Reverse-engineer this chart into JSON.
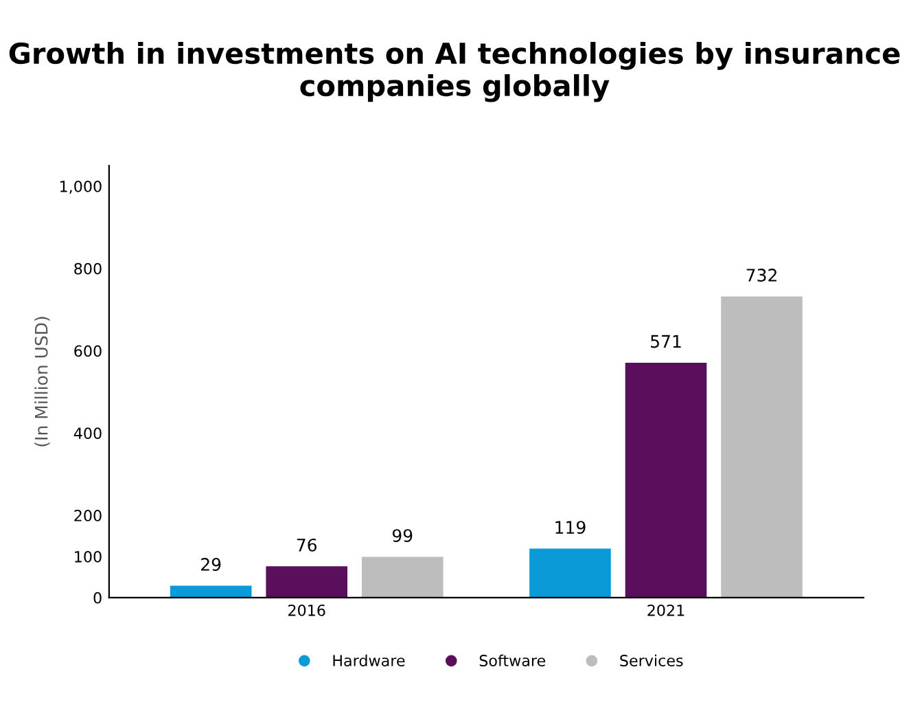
{
  "chart_data": {
    "type": "bar",
    "title": "Growth in investments on AI technologies by insurance companies globally",
    "ylabel": "(In Million USD)",
    "categories": [
      "2016",
      "2021"
    ],
    "series": [
      {
        "name": "Hardware",
        "color": "#0b9ad8",
        "values": [
          29,
          119
        ]
      },
      {
        "name": "Software",
        "color": "#5a0f5c",
        "values": [
          76,
          571
        ]
      },
      {
        "name": "Services",
        "color": "#bdbdbd",
        "values": [
          99,
          732
        ]
      }
    ],
    "ylim": [
      0,
      1050
    ],
    "yticks": [
      0,
      100,
      200,
      400,
      600,
      800,
      {
        "value": 1000,
        "label": "1,000"
      }
    ],
    "data_labels": true,
    "legend": "bottom",
    "grid": false
  }
}
